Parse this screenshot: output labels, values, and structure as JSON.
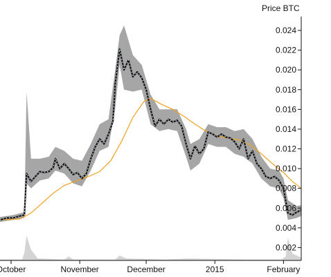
{
  "chart_data": {
    "type": "line",
    "ylabel": "Price BTC",
    "y_ticks": [
      "0.002",
      "0.004",
      "0.006",
      "0.008",
      "0.010",
      "0.012",
      "0.014",
      "0.016",
      "0.018",
      "0.020",
      "0.022",
      "0.024"
    ],
    "ylim": [
      0.0007,
      0.0254
    ],
    "x_range": [
      "2014-09-26",
      "2015-02-09"
    ],
    "x_ticks": [
      {
        "label": "October",
        "date": "2014-10-01"
      },
      {
        "label": "November",
        "date": "2014-11-01"
      },
      {
        "label": "December",
        "date": "2014-12-01"
      },
      {
        "label": "2015",
        "date": "2015-01-01"
      },
      {
        "label": "February",
        "date": "2015-02-01"
      }
    ],
    "colors": {
      "price": "#111111",
      "dotted": "#dbe9f7",
      "band": "#a6a6a6",
      "moving_average": "#f0a020",
      "volume": "#d4d4d4",
      "axis": "#111111"
    },
    "series": [
      {
        "role": "price",
        "points": [
          [
            "2014-09-26",
            0.0048
          ],
          [
            "2014-09-29",
            0.005
          ],
          [
            "2014-10-02",
            0.005
          ],
          [
            "2014-10-05",
            0.0052
          ],
          [
            "2014-10-07",
            0.0053
          ],
          [
            "2014-10-08",
            0.0095
          ],
          [
            "2014-10-10",
            0.0087
          ],
          [
            "2014-10-12",
            0.0092
          ],
          [
            "2014-10-14",
            0.0097
          ],
          [
            "2014-10-16",
            0.0096
          ],
          [
            "2014-10-18",
            0.0097
          ],
          [
            "2014-10-20",
            0.0101
          ],
          [
            "2014-10-21",
            0.011
          ],
          [
            "2014-10-23",
            0.01
          ],
          [
            "2014-10-25",
            0.0105
          ],
          [
            "2014-10-27",
            0.01
          ],
          [
            "2014-10-29",
            0.0094
          ],
          [
            "2014-10-31",
            0.0096
          ],
          [
            "2014-11-02",
            0.009
          ],
          [
            "2014-11-04",
            0.0095
          ],
          [
            "2014-11-06",
            0.011
          ],
          [
            "2014-11-08",
            0.0122
          ],
          [
            "2014-11-10",
            0.013
          ],
          [
            "2014-11-12",
            0.0125
          ],
          [
            "2014-11-14",
            0.0135
          ],
          [
            "2014-11-16",
            0.0148
          ],
          [
            "2014-11-17",
            0.0185
          ],
          [
            "2014-11-19",
            0.0221
          ],
          [
            "2014-11-21",
            0.02
          ],
          [
            "2014-11-23",
            0.021
          ],
          [
            "2014-11-25",
            0.0193
          ],
          [
            "2014-11-27",
            0.0198
          ],
          [
            "2014-11-29",
            0.0192
          ],
          [
            "2014-12-01",
            0.018
          ],
          [
            "2014-12-03",
            0.016
          ],
          [
            "2014-12-05",
            0.0143
          ],
          [
            "2014-12-07",
            0.015
          ],
          [
            "2014-12-09",
            0.0145
          ],
          [
            "2014-12-11",
            0.015
          ],
          [
            "2014-12-13",
            0.0147
          ],
          [
            "2014-12-15",
            0.0149
          ],
          [
            "2014-12-17",
            0.0143
          ],
          [
            "2014-12-19",
            0.0125
          ],
          [
            "2014-12-21",
            0.011
          ],
          [
            "2014-12-23",
            0.0123
          ],
          [
            "2014-12-25",
            0.0115
          ],
          [
            "2014-12-27",
            0.012
          ],
          [
            "2014-12-29",
            0.0137
          ],
          [
            "2014-12-31",
            0.0135
          ],
          [
            "2015-01-02",
            0.0132
          ],
          [
            "2015-01-04",
            0.0135
          ],
          [
            "2015-01-06",
            0.0132
          ],
          [
            "2015-01-08",
            0.0131
          ],
          [
            "2015-01-10",
            0.0127
          ],
          [
            "2015-01-12",
            0.012
          ],
          [
            "2015-01-14",
            0.013
          ],
          [
            "2015-01-16",
            0.011
          ],
          [
            "2015-01-18",
            0.0118
          ],
          [
            "2015-01-20",
            0.0105
          ],
          [
            "2015-01-22",
            0.01
          ],
          [
            "2015-01-24",
            0.0092
          ],
          [
            "2015-01-26",
            0.009
          ],
          [
            "2015-01-28",
            0.0092
          ],
          [
            "2015-01-30",
            0.0088
          ],
          [
            "2015-02-01",
            0.008
          ],
          [
            "2015-02-03",
            0.0055
          ],
          [
            "2015-02-05",
            0.0053
          ],
          [
            "2015-02-07",
            0.0056
          ],
          [
            "2015-02-09",
            0.0058
          ]
        ]
      },
      {
        "role": "moving_average",
        "points": [
          [
            "2014-09-26",
            0.0048
          ],
          [
            "2014-10-05",
            0.0049
          ],
          [
            "2014-10-10",
            0.0055
          ],
          [
            "2014-10-15",
            0.0065
          ],
          [
            "2014-10-20",
            0.0075
          ],
          [
            "2014-10-25",
            0.0083
          ],
          [
            "2014-10-31",
            0.0088
          ],
          [
            "2014-11-05",
            0.0092
          ],
          [
            "2014-11-10",
            0.0097
          ],
          [
            "2014-11-15",
            0.0108
          ],
          [
            "2014-11-20",
            0.0128
          ],
          [
            "2014-11-25",
            0.0152
          ],
          [
            "2014-11-30",
            0.0168
          ],
          [
            "2014-12-03",
            0.0171
          ],
          [
            "2014-12-08",
            0.0165
          ],
          [
            "2014-12-13",
            0.016
          ],
          [
            "2014-12-18",
            0.0153
          ],
          [
            "2014-12-23",
            0.0145
          ],
          [
            "2014-12-28",
            0.0138
          ],
          [
            "2015-01-02",
            0.0133
          ],
          [
            "2015-01-07",
            0.0131
          ],
          [
            "2015-01-12",
            0.0129
          ],
          [
            "2015-01-17",
            0.0124
          ],
          [
            "2015-01-22",
            0.0115
          ],
          [
            "2015-01-27",
            0.0105
          ],
          [
            "2015-02-01",
            0.0096
          ],
          [
            "2015-02-05",
            0.0087
          ],
          [
            "2015-02-09",
            0.008
          ]
        ]
      },
      {
        "role": "volatility_band",
        "points": [
          [
            "2014-09-26",
            0.0046,
            0.0051
          ],
          [
            "2014-10-02",
            0.0048,
            0.0053
          ],
          [
            "2014-10-07",
            0.005,
            0.0056
          ],
          [
            "2014-10-08",
            0.0085,
            0.0178
          ],
          [
            "2014-10-10",
            0.008,
            0.011
          ],
          [
            "2014-10-14",
            0.0088,
            0.011
          ],
          [
            "2014-10-18",
            0.009,
            0.0112
          ],
          [
            "2014-10-21",
            0.0098,
            0.0122
          ],
          [
            "2014-10-25",
            0.0095,
            0.0118
          ],
          [
            "2014-10-29",
            0.0085,
            0.011
          ],
          [
            "2014-11-02",
            0.0082,
            0.0108
          ],
          [
            "2014-11-06",
            0.0098,
            0.0125
          ],
          [
            "2014-11-10",
            0.0118,
            0.0145
          ],
          [
            "2014-11-14",
            0.0122,
            0.015
          ],
          [
            "2014-11-17",
            0.016,
            0.02
          ],
          [
            "2014-11-19",
            0.0205,
            0.0235
          ],
          [
            "2014-11-21",
            0.018,
            0.0245
          ],
          [
            "2014-11-25",
            0.0178,
            0.0215
          ],
          [
            "2014-11-29",
            0.018,
            0.0205
          ],
          [
            "2014-12-03",
            0.0145,
            0.0175
          ],
          [
            "2014-12-07",
            0.0138,
            0.016
          ],
          [
            "2014-12-11",
            0.014,
            0.016
          ],
          [
            "2014-12-15",
            0.0138,
            0.016
          ],
          [
            "2014-12-19",
            0.0112,
            0.014
          ],
          [
            "2014-12-21",
            0.0098,
            0.0125
          ],
          [
            "2014-12-25",
            0.0105,
            0.013
          ],
          [
            "2014-12-29",
            0.0125,
            0.0145
          ],
          [
            "2015-01-02",
            0.0122,
            0.0142
          ],
          [
            "2015-01-06",
            0.0122,
            0.0142
          ],
          [
            "2015-01-10",
            0.0115,
            0.0138
          ],
          [
            "2015-01-14",
            0.0112,
            0.014
          ],
          [
            "2015-01-18",
            0.0105,
            0.013
          ],
          [
            "2015-01-22",
            0.009,
            0.0112
          ],
          [
            "2015-01-26",
            0.0082,
            0.01
          ],
          [
            "2015-01-30",
            0.008,
            0.0098
          ],
          [
            "2015-02-01",
            0.007,
            0.009
          ],
          [
            "2015-02-03",
            0.0048,
            0.0068
          ],
          [
            "2015-02-07",
            0.005,
            0.0062
          ],
          [
            "2015-02-09",
            0.0052,
            0.0063
          ]
        ]
      },
      {
        "role": "volume",
        "points": [
          [
            "2014-09-26",
            0.0008
          ],
          [
            "2014-10-06",
            0.0008
          ],
          [
            "2014-10-07",
            0.0015
          ],
          [
            "2014-10-08",
            0.0032
          ],
          [
            "2014-10-10",
            0.0018
          ],
          [
            "2014-10-13",
            0.0009
          ],
          [
            "2014-10-25",
            0.0008
          ],
          [
            "2014-10-27",
            0.0011
          ],
          [
            "2014-10-29",
            0.0008
          ],
          [
            "2014-11-17",
            0.0008
          ],
          [
            "2014-11-19",
            0.0012
          ],
          [
            "2014-11-22",
            0.0009
          ],
          [
            "2014-12-10",
            0.0008
          ],
          [
            "2014-12-20",
            0.0009
          ],
          [
            "2015-01-15",
            0.0008
          ],
          [
            "2015-01-31",
            0.0008
          ],
          [
            "2015-02-02",
            0.0011
          ],
          [
            "2015-02-03",
            0.003
          ],
          [
            "2015-02-05",
            0.0014
          ],
          [
            "2015-02-09",
            0.001
          ]
        ]
      }
    ]
  }
}
